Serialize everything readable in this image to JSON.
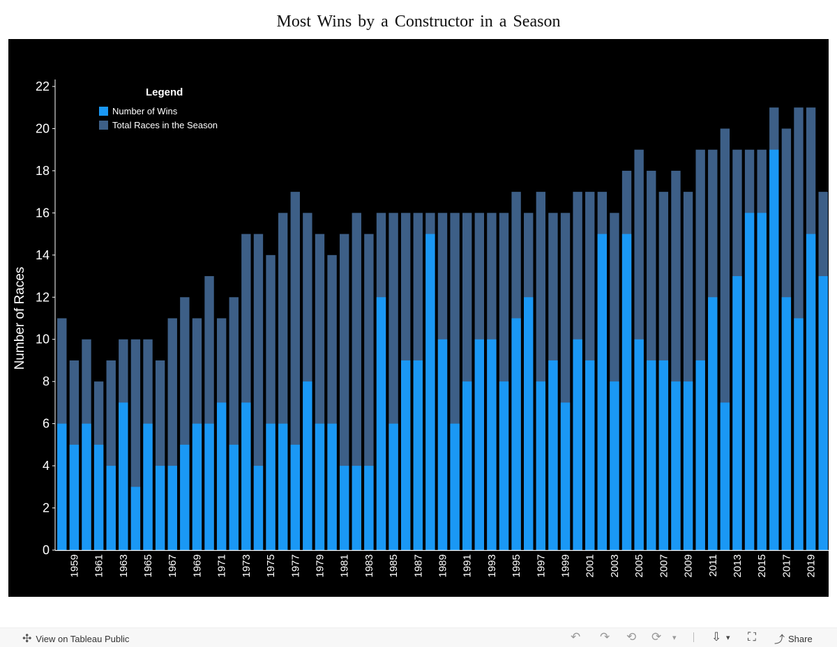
{
  "chart_data": {
    "type": "bar",
    "title": "Most Wins by a Constructor in a Season",
    "ylabel": "Number of Races",
    "xlabel": "",
    "ylim": [
      0,
      22
    ],
    "yticks": [
      0,
      2,
      4,
      6,
      8,
      10,
      12,
      14,
      16,
      18,
      20,
      22
    ],
    "categories": [
      1958,
      1959,
      1960,
      1961,
      1962,
      1963,
      1964,
      1965,
      1966,
      1967,
      1968,
      1969,
      1970,
      1971,
      1972,
      1973,
      1974,
      1975,
      1976,
      1977,
      1978,
      1979,
      1980,
      1981,
      1982,
      1983,
      1984,
      1985,
      1986,
      1987,
      1988,
      1989,
      1990,
      1991,
      1992,
      1993,
      1994,
      1995,
      1996,
      1997,
      1998,
      1999,
      2000,
      2001,
      2002,
      2003,
      2004,
      2005,
      2006,
      2007,
      2008,
      2009,
      2010,
      2011,
      2012,
      2013,
      2014,
      2015,
      2016,
      2017,
      2018,
      2019,
      2020
    ],
    "tick_labels": [
      "1959",
      "1961",
      "1963",
      "1965",
      "1967",
      "1969",
      "1971",
      "1973",
      "1975",
      "1977",
      "1979",
      "1981",
      "1983",
      "1985",
      "1987",
      "1989",
      "1991",
      "1993",
      "1995",
      "1997",
      "1999",
      "2001",
      "2003",
      "2005",
      "2007",
      "2009",
      "2011",
      "2013",
      "2015",
      "2017",
      "2019"
    ],
    "series": [
      {
        "name": "Number of Wins",
        "color": "#1a98f5",
        "values": [
          6,
          5,
          6,
          5,
          4,
          7,
          3,
          6,
          4,
          4,
          5,
          6,
          6,
          7,
          5,
          7,
          4,
          6,
          6,
          5,
          8,
          6,
          6,
          4,
          4,
          4,
          12,
          6,
          9,
          9,
          15,
          10,
          6,
          8,
          10,
          10,
          8,
          11,
          12,
          8,
          9,
          7,
          10,
          9,
          15,
          8,
          15,
          10,
          9,
          9,
          8,
          8,
          9,
          12,
          7,
          13,
          16,
          16,
          19,
          12,
          11,
          15,
          13
        ]
      },
      {
        "name": "Total Races in the Season",
        "color": "#3d5f87",
        "values": [
          11,
          9,
          10,
          8,
          9,
          10,
          10,
          10,
          9,
          11,
          12,
          11,
          13,
          11,
          12,
          15,
          15,
          14,
          16,
          17,
          16,
          15,
          14,
          15,
          16,
          15,
          16,
          16,
          16,
          16,
          16,
          16,
          16,
          16,
          16,
          16,
          16,
          17,
          16,
          17,
          16,
          16,
          17,
          17,
          17,
          16,
          18,
          19,
          18,
          17,
          18,
          17,
          19,
          19,
          20,
          19,
          19,
          19,
          21,
          20,
          21,
          21,
          17
        ]
      }
    ],
    "legend": {
      "title": "Legend",
      "position": "top-left"
    }
  },
  "footer": {
    "view_link": "View on Tableau Public",
    "share_label": "Share"
  }
}
